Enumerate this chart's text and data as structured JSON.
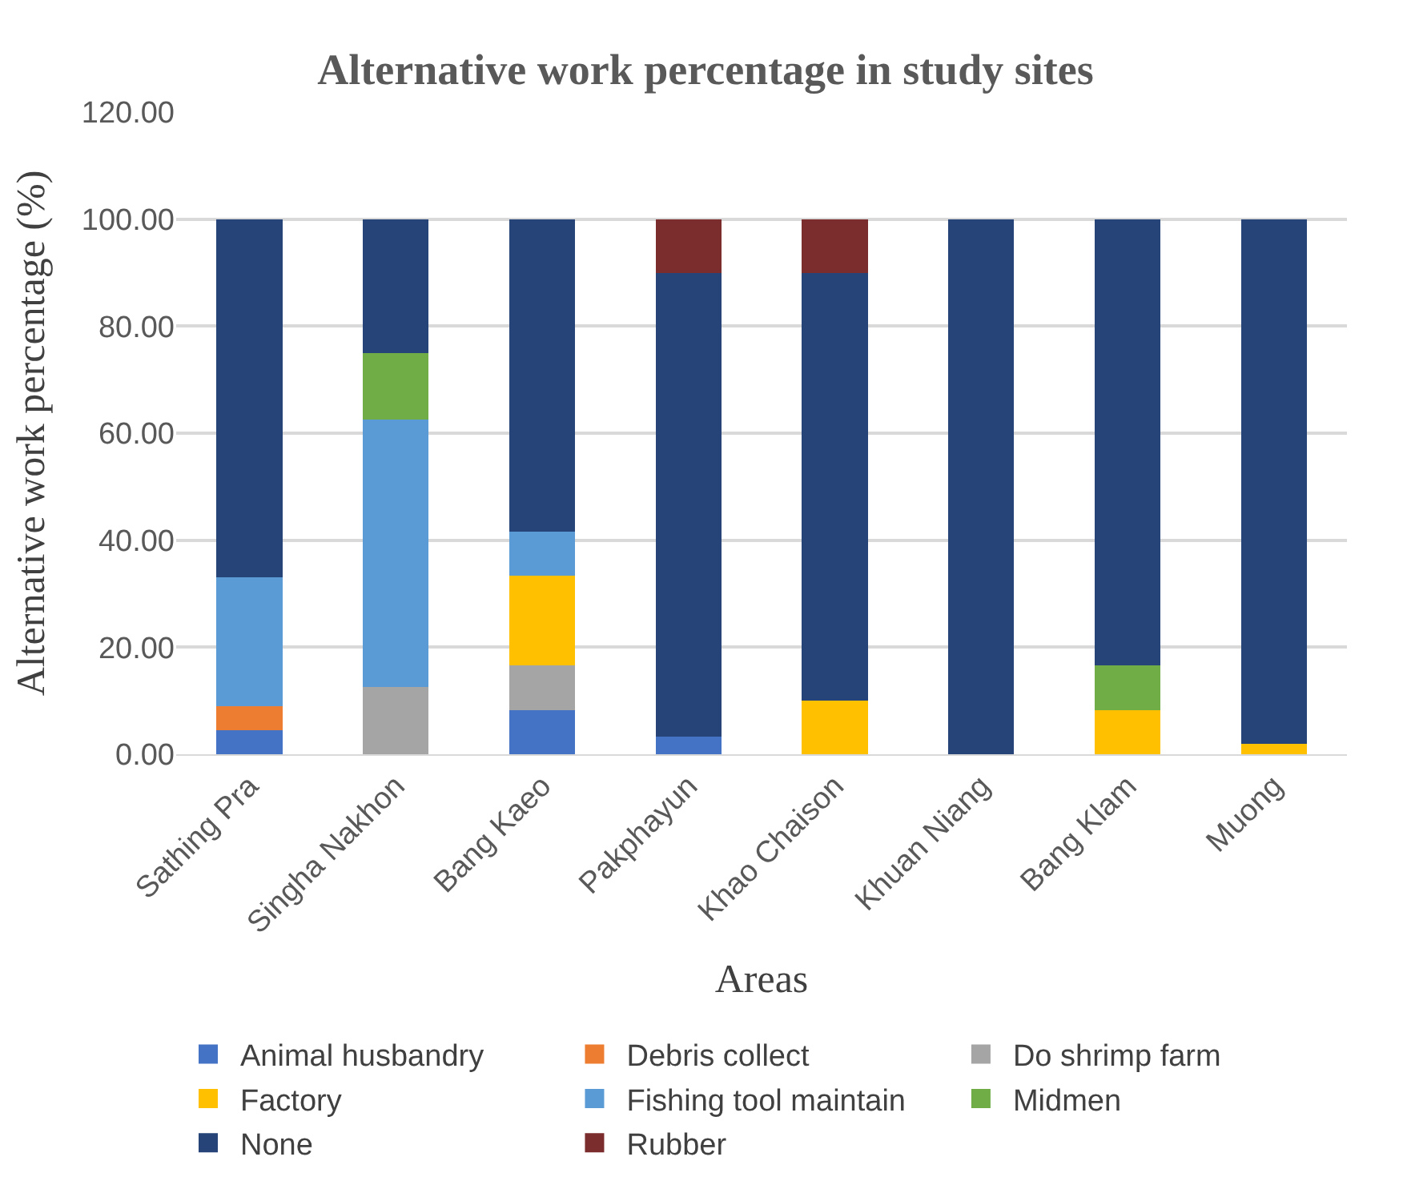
{
  "chart_data": {
    "type": "bar",
    "stacked": true,
    "title": "Alternative work percentage in study sites",
    "xlabel": "Areas",
    "ylabel": "Alternative work percentage (%)",
    "categories": [
      "Sathing Pra",
      "Singha Nakhon",
      "Bang Kaeo",
      "Pakphayun",
      "Khao Chaison",
      "Khuan Niang",
      "Bang Klam",
      "Muong"
    ],
    "series": [
      {
        "name": "Animal husbandry",
        "color": "#4472c4",
        "values": [
          4.5,
          0,
          8.3,
          3.3,
          0,
          0,
          0,
          0
        ]
      },
      {
        "name": "Debris collect",
        "color": "#ed7d31",
        "values": [
          4.5,
          0,
          0,
          0,
          0,
          0,
          0,
          0
        ]
      },
      {
        "name": "Do shrimp farm",
        "color": "#a5a5a5",
        "values": [
          0,
          12.5,
          8.3,
          0,
          0,
          0,
          0,
          0
        ]
      },
      {
        "name": "Factory",
        "color": "#ffc000",
        "values": [
          0,
          0,
          16.7,
          0,
          10,
          0,
          8.3,
          2
        ]
      },
      {
        "name": "Fishing tool maintain",
        "color": "#5b9bd5",
        "values": [
          24,
          50,
          8.3,
          0,
          0,
          0,
          0,
          0
        ]
      },
      {
        "name": "Midmen",
        "color": "#70ad47",
        "values": [
          0,
          12.5,
          0,
          0,
          0,
          0,
          8.3,
          0
        ]
      },
      {
        "name": "None",
        "color": "#264478",
        "values": [
          67,
          25,
          58.4,
          86.7,
          80,
          100,
          83.4,
          98
        ]
      },
      {
        "name": "Rubber",
        "color": "#7b2c2c",
        "values": [
          0,
          0,
          0,
          10,
          10,
          0,
          0,
          0
        ]
      }
    ],
    "ylim": [
      0,
      120
    ],
    "yticks": [
      {
        "value": 0,
        "label": "0.00"
      },
      {
        "value": 20,
        "label": "20.00"
      },
      {
        "value": 40,
        "label": "40.00"
      },
      {
        "value": 60,
        "label": "60.00"
      },
      {
        "value": 80,
        "label": "80.00"
      },
      {
        "value": 100,
        "label": "100.00"
      },
      {
        "value": 120,
        "label": "120.00"
      }
    ],
    "grid": "y",
    "legend": "bottom"
  }
}
